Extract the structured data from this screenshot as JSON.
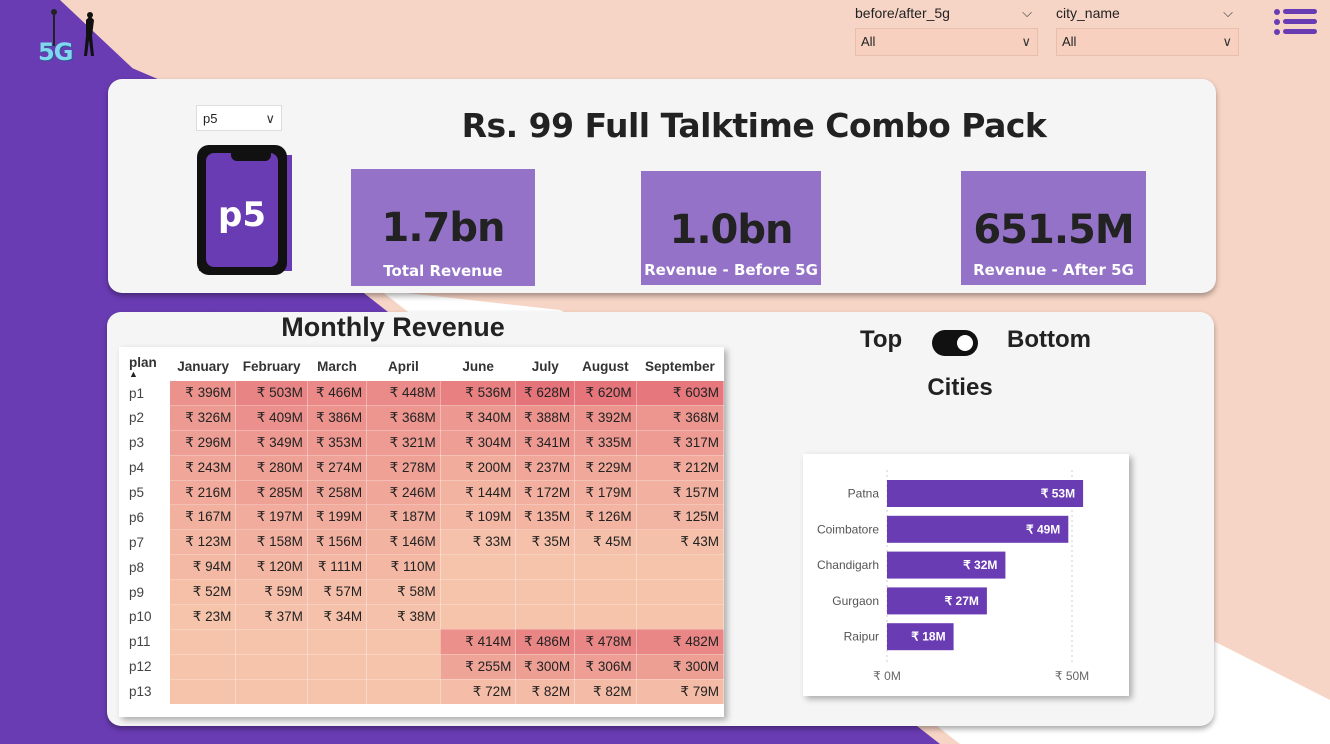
{
  "logo": {
    "text": "5G"
  },
  "filters": {
    "before_after": {
      "label": "before/after_5g",
      "value": "All"
    },
    "city": {
      "label": "city_name",
      "value": "All"
    }
  },
  "menu": {
    "icon": "hamburger-list-icon"
  },
  "plan_selector": {
    "value": "p5"
  },
  "phone_label": "p5",
  "pack_title": "Rs. 99 Full Talktime Combo Pack",
  "kpis": [
    {
      "value": "1.7bn",
      "label": "Total Revenue"
    },
    {
      "value": "1.0bn",
      "label": "Revenue - Before 5G"
    },
    {
      "value": "651.5M",
      "label": "Revenue - After 5G"
    }
  ],
  "monthly_revenue": {
    "title": "Monthly Revenue",
    "columns": [
      "plan",
      "January",
      "February",
      "March",
      "April",
      "June",
      "July",
      "August",
      "September"
    ],
    "rows": [
      {
        "plan": "p1",
        "cells": [
          "₹ 396M",
          "₹ 503M",
          "₹ 466M",
          "₹ 448M",
          "₹ 536M",
          "₹ 628M",
          "₹ 620M",
          "₹ 603M"
        ],
        "v": [
          396,
          503,
          466,
          448,
          536,
          628,
          620,
          603
        ]
      },
      {
        "plan": "p2",
        "cells": [
          "₹ 326M",
          "₹ 409M",
          "₹ 386M",
          "₹ 368M",
          "₹ 340M",
          "₹ 388M",
          "₹ 392M",
          "₹ 368M"
        ],
        "v": [
          326,
          409,
          386,
          368,
          340,
          388,
          392,
          368
        ]
      },
      {
        "plan": "p3",
        "cells": [
          "₹ 296M",
          "₹ 349M",
          "₹ 353M",
          "₹ 321M",
          "₹ 304M",
          "₹ 341M",
          "₹ 335M",
          "₹ 317M"
        ],
        "v": [
          296,
          349,
          353,
          321,
          304,
          341,
          335,
          317
        ]
      },
      {
        "plan": "p4",
        "cells": [
          "₹ 243M",
          "₹ 280M",
          "₹ 274M",
          "₹ 278M",
          "₹ 200M",
          "₹ 237M",
          "₹ 229M",
          "₹ 212M"
        ],
        "v": [
          243,
          280,
          274,
          278,
          200,
          237,
          229,
          212
        ]
      },
      {
        "plan": "p5",
        "cells": [
          "₹ 216M",
          "₹ 285M",
          "₹ 258M",
          "₹ 246M",
          "₹ 144M",
          "₹ 172M",
          "₹ 179M",
          "₹ 157M"
        ],
        "v": [
          216,
          285,
          258,
          246,
          144,
          172,
          179,
          157
        ]
      },
      {
        "plan": "p6",
        "cells": [
          "₹ 167M",
          "₹ 197M",
          "₹ 199M",
          "₹ 187M",
          "₹ 109M",
          "₹ 135M",
          "₹ 126M",
          "₹ 125M"
        ],
        "v": [
          167,
          197,
          199,
          187,
          109,
          135,
          126,
          125
        ]
      },
      {
        "plan": "p7",
        "cells": [
          "₹ 123M",
          "₹ 158M",
          "₹ 156M",
          "₹ 146M",
          "₹ 33M",
          "₹ 35M",
          "₹ 45M",
          "₹ 43M"
        ],
        "v": [
          123,
          158,
          156,
          146,
          33,
          35,
          45,
          43
        ]
      },
      {
        "plan": "p8",
        "cells": [
          "₹ 94M",
          "₹ 120M",
          "₹ 111M",
          "₹ 110M",
          "",
          "",
          "",
          ""
        ],
        "v": [
          94,
          120,
          111,
          110,
          0,
          0,
          0,
          0
        ]
      },
      {
        "plan": "p9",
        "cells": [
          "₹ 52M",
          "₹ 59M",
          "₹ 57M",
          "₹ 58M",
          "",
          "",
          "",
          ""
        ],
        "v": [
          52,
          59,
          57,
          58,
          0,
          0,
          0,
          0
        ]
      },
      {
        "plan": "p10",
        "cells": [
          "₹ 23M",
          "₹ 37M",
          "₹ 34M",
          "₹ 38M",
          "",
          "",
          "",
          ""
        ],
        "v": [
          23,
          37,
          34,
          38,
          0,
          0,
          0,
          0
        ]
      },
      {
        "plan": "p11",
        "cells": [
          "",
          "",
          "",
          "",
          "₹ 414M",
          "₹ 486M",
          "₹ 478M",
          "₹ 482M"
        ],
        "v": [
          0,
          0,
          0,
          0,
          414,
          486,
          478,
          482
        ]
      },
      {
        "plan": "p12",
        "cells": [
          "",
          "",
          "",
          "",
          "₹ 255M",
          "₹ 300M",
          "₹ 306M",
          "₹ 300M"
        ],
        "v": [
          0,
          0,
          0,
          0,
          255,
          300,
          306,
          300
        ]
      },
      {
        "plan": "p13",
        "cells": [
          "",
          "",
          "",
          "",
          "₹ 72M",
          "₹ 82M",
          "₹ 82M",
          "₹ 79M"
        ],
        "v": [
          0,
          0,
          0,
          0,
          72,
          82,
          82,
          79
        ]
      }
    ],
    "heat_colors": {
      "low": "#f6c3ab",
      "high": "#e5747a"
    }
  },
  "toggle": {
    "left_label": "Top",
    "right_label": "Bottom",
    "state": "on"
  },
  "cities_title": "Cities",
  "chart_data": {
    "type": "bar",
    "orientation": "horizontal",
    "categories": [
      "Patna",
      "Coimbatore",
      "Chandigarh",
      "Gurgaon",
      "Raipur"
    ],
    "values": [
      53,
      49,
      32,
      27,
      18
    ],
    "data_labels": [
      "₹ 53M",
      "₹ 49M",
      "₹ 32M",
      "₹ 27M",
      "₹ 18M"
    ],
    "xlim": [
      0,
      60
    ],
    "x_ticks": [
      0,
      50
    ],
    "x_tick_labels": [
      "₹ 0M",
      "₹ 50M"
    ],
    "grid": true,
    "bar_color": "#6a3cb4"
  },
  "colors": {
    "purple": "#6a3cb4",
    "peach": "#f7d5c6",
    "kpi": "#9472c8"
  }
}
